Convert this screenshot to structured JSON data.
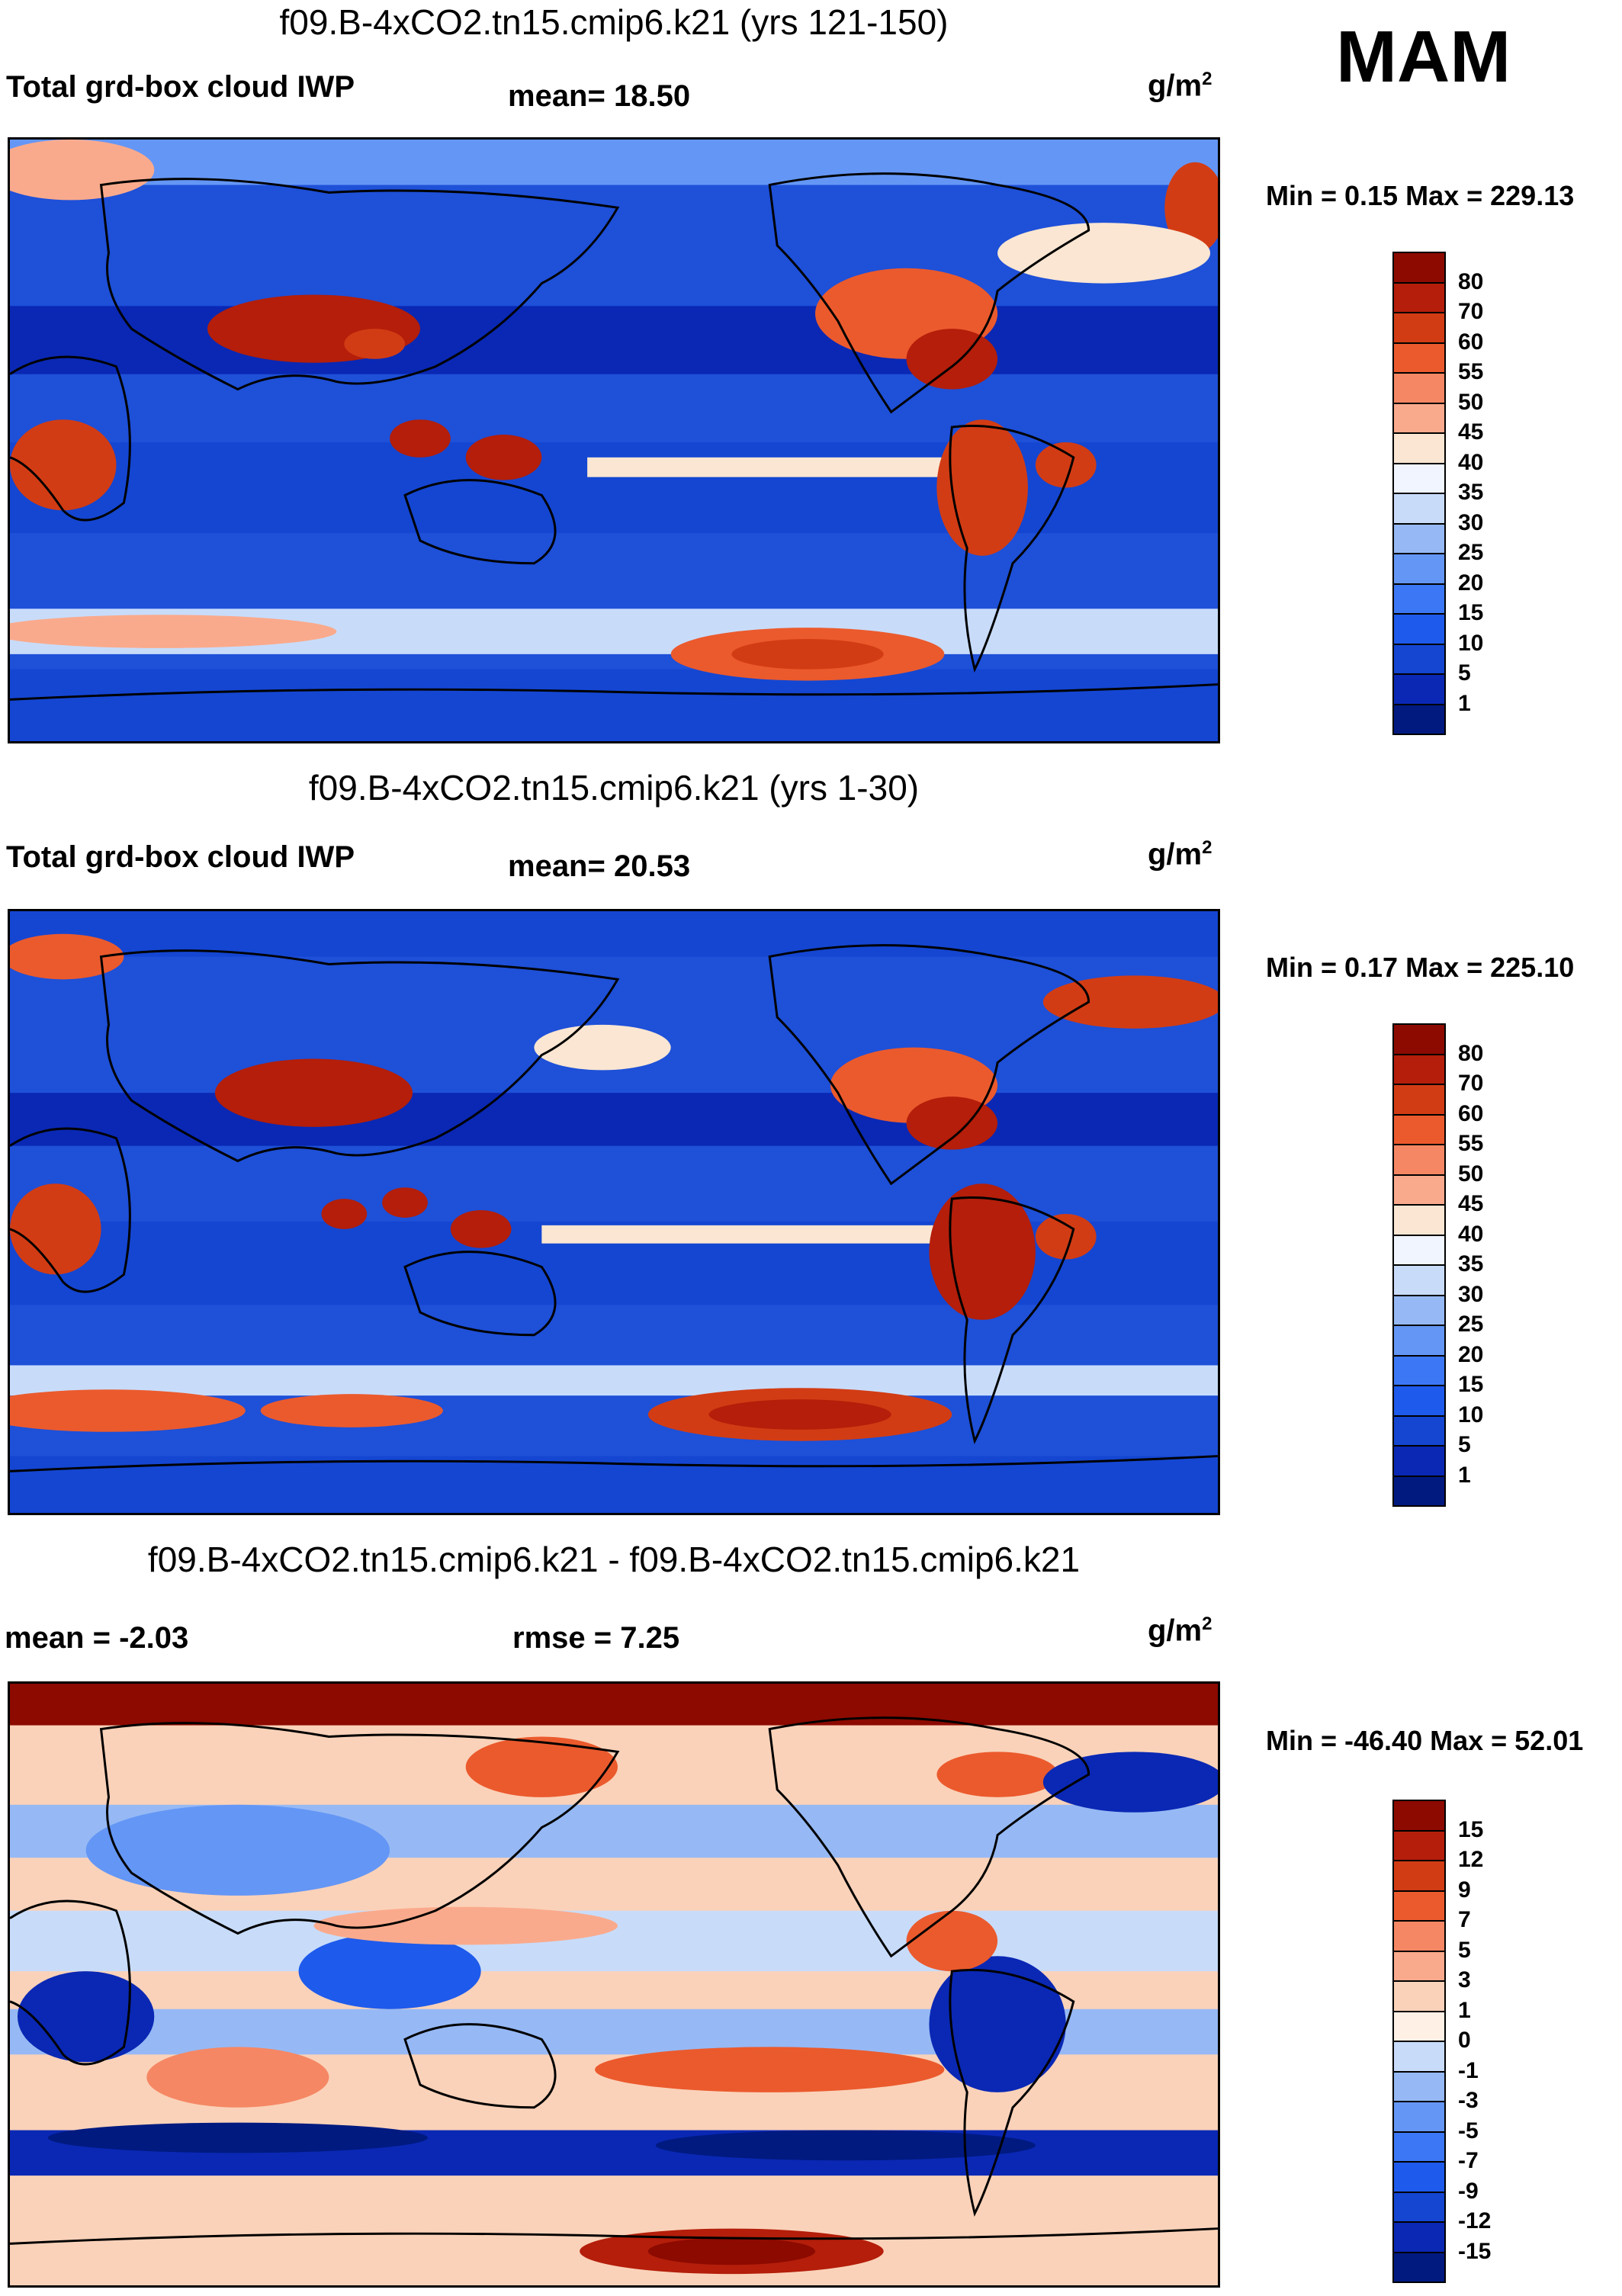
{
  "season": "MAM",
  "units_base": "g/m",
  "units_exp": "2",
  "panels": [
    {
      "title": "f09.B-4xCO2.tn15.cmip6.k21 (yrs 121-150)",
      "left_label": "Total grd-box cloud IWP",
      "center_label": "mean=  18.50",
      "minmax": "Min =   0.15 Max = 229.13",
      "colorbar": {
        "levels": [
          "1",
          "5",
          "10",
          "15",
          "20",
          "25",
          "30",
          "35",
          "40",
          "45",
          "50",
          "55",
          "60",
          "70",
          "80"
        ],
        "colors": [
          "#001a80",
          "#0a28b4",
          "#1446d2",
          "#1e5aeb",
          "#3c78f5",
          "#6496f5",
          "#96b9f5",
          "#c8dcfa",
          "#f0f5ff",
          "#fae6d2",
          "#faaa8c",
          "#f58764",
          "#eb5a2d",
          "#d23c14",
          "#b41e0a",
          "#8c0a00"
        ]
      },
      "map_features": [
        "land",
        "coastlines"
      ]
    },
    {
      "title": "f09.B-4xCO2.tn15.cmip6.k21 (yrs 1-30)",
      "left_label": "Total grd-box cloud IWP",
      "center_label": "mean=  20.53",
      "minmax": "Min =   0.17 Max = 225.10",
      "colorbar": {
        "levels": [
          "1",
          "5",
          "10",
          "15",
          "20",
          "25",
          "30",
          "35",
          "40",
          "45",
          "50",
          "55",
          "60",
          "70",
          "80"
        ],
        "colors": [
          "#001a80",
          "#0a28b4",
          "#1446d2",
          "#1e5aeb",
          "#3c78f5",
          "#6496f5",
          "#96b9f5",
          "#c8dcfa",
          "#f0f5ff",
          "#fae6d2",
          "#faaa8c",
          "#f58764",
          "#eb5a2d",
          "#d23c14",
          "#b41e0a",
          "#8c0a00"
        ]
      },
      "map_features": [
        "land",
        "coastlines"
      ]
    },
    {
      "title": "f09.B-4xCO2.tn15.cmip6.k21 - f09.B-4xCO2.tn15.cmip6.k21",
      "left_label": "mean =  -2.03",
      "center_label": "rmse =    7.25",
      "minmax": "Min = -46.40 Max =  52.01",
      "colorbar": {
        "levels": [
          "-15",
          "-12",
          "-9",
          "-7",
          "-5",
          "-3",
          "-1",
          "0",
          "1",
          "3",
          "5",
          "7",
          "9",
          "12",
          "15"
        ],
        "colors": [
          "#001a80",
          "#0a28b4",
          "#1446d2",
          "#1e5aeb",
          "#3c78f5",
          "#6496f5",
          "#96b9f5",
          "#c8dcfa",
          "#fff0e6",
          "#fad2b9",
          "#faaa8c",
          "#f58764",
          "#eb5a2d",
          "#d23c14",
          "#b41e0a",
          "#8c0a00"
        ]
      },
      "map_features": [
        "land",
        "coastlines"
      ]
    }
  ]
}
